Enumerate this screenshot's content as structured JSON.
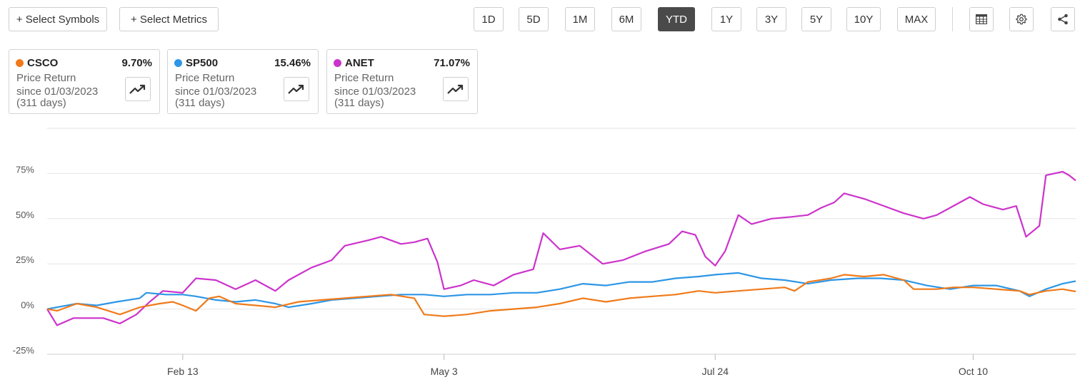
{
  "toolbar": {
    "select_symbols": "+ Select Symbols",
    "select_metrics": "+ Select Metrics",
    "ranges": [
      "1D",
      "5D",
      "1M",
      "6M",
      "YTD",
      "1Y",
      "3Y",
      "5Y",
      "10Y",
      "MAX"
    ],
    "active_range": "YTD"
  },
  "cards": [
    {
      "symbol": "CSCO",
      "value": "9.70%",
      "color": "#f07a1a",
      "metric": "Price Return",
      "since": "since 01/03/2023",
      "days": "(311 days)"
    },
    {
      "symbol": "SP500",
      "value": "15.46%",
      "color": "#2d96e6",
      "metric": "Price Return",
      "since": "since 01/03/2023",
      "days": "(311 days)"
    },
    {
      "symbol": "ANET",
      "value": "71.07%",
      "color": "#cc33cc",
      "metric": "Price Return",
      "since": "since 01/03/2023",
      "days": "(311 days)"
    }
  ],
  "chart_data": {
    "type": "line",
    "yticks": [
      -25,
      0,
      25,
      50,
      75
    ],
    "ytick_labels": [
      "-25%",
      "0%",
      "25%",
      "50%",
      "75%"
    ],
    "ylim": [
      -25,
      100
    ],
    "xlim": [
      "2023-01-03",
      "2023-11-10"
    ],
    "xticks": [
      {
        "date": "2023-02-13",
        "label": "Feb 13"
      },
      {
        "date": "2023-05-03",
        "label": "May 3"
      },
      {
        "date": "2023-07-24",
        "label": "Jul 24"
      },
      {
        "date": "2023-10-10",
        "label": "Oct 10"
      }
    ],
    "series": [
      {
        "name": "ANET",
        "color": "#cc33cc",
        "points": [
          [
            "2023-01-03",
            0
          ],
          [
            "2023-01-06",
            -9
          ],
          [
            "2023-01-11",
            -5
          ],
          [
            "2023-01-20",
            -5
          ],
          [
            "2023-01-25",
            -8
          ],
          [
            "2023-01-30",
            -3
          ],
          [
            "2023-02-03",
            4
          ],
          [
            "2023-02-07",
            10
          ],
          [
            "2023-02-13",
            9
          ],
          [
            "2023-02-17",
            17
          ],
          [
            "2023-02-23",
            16
          ],
          [
            "2023-03-01",
            11
          ],
          [
            "2023-03-07",
            16
          ],
          [
            "2023-03-13",
            10
          ],
          [
            "2023-03-17",
            16
          ],
          [
            "2023-03-24",
            23
          ],
          [
            "2023-03-30",
            27
          ],
          [
            "2023-04-03",
            35
          ],
          [
            "2023-04-10",
            38
          ],
          [
            "2023-04-14",
            40
          ],
          [
            "2023-04-20",
            36
          ],
          [
            "2023-04-24",
            37
          ],
          [
            "2023-04-28",
            39
          ],
          [
            "2023-05-01",
            26
          ],
          [
            "2023-05-03",
            11
          ],
          [
            "2023-05-08",
            13
          ],
          [
            "2023-05-12",
            16
          ],
          [
            "2023-05-18",
            13
          ],
          [
            "2023-05-24",
            19
          ],
          [
            "2023-05-30",
            22
          ],
          [
            "2023-06-02",
            42
          ],
          [
            "2023-06-07",
            33
          ],
          [
            "2023-06-13",
            35
          ],
          [
            "2023-06-20",
            25
          ],
          [
            "2023-06-26",
            27
          ],
          [
            "2023-07-03",
            32
          ],
          [
            "2023-07-10",
            36
          ],
          [
            "2023-07-14",
            43
          ],
          [
            "2023-07-18",
            41
          ],
          [
            "2023-07-21",
            29
          ],
          [
            "2023-07-24",
            24
          ],
          [
            "2023-07-27",
            32
          ],
          [
            "2023-07-31",
            52
          ],
          [
            "2023-08-04",
            47
          ],
          [
            "2023-08-10",
            50
          ],
          [
            "2023-08-16",
            51
          ],
          [
            "2023-08-21",
            52
          ],
          [
            "2023-08-25",
            56
          ],
          [
            "2023-08-29",
            59
          ],
          [
            "2023-09-01",
            64
          ],
          [
            "2023-09-07",
            61
          ],
          [
            "2023-09-13",
            57
          ],
          [
            "2023-09-19",
            53
          ],
          [
            "2023-09-25",
            50
          ],
          [
            "2023-09-29",
            52
          ],
          [
            "2023-10-04",
            57
          ],
          [
            "2023-10-09",
            62
          ],
          [
            "2023-10-13",
            58
          ],
          [
            "2023-10-19",
            55
          ],
          [
            "2023-10-23",
            57
          ],
          [
            "2023-10-26",
            40
          ],
          [
            "2023-10-30",
            46
          ],
          [
            "2023-11-01",
            74
          ],
          [
            "2023-11-06",
            76
          ],
          [
            "2023-11-08",
            74
          ],
          [
            "2023-11-10",
            71.07
          ]
        ]
      },
      {
        "name": "SP500",
        "color": "#2d96e6",
        "points": [
          [
            "2023-01-03",
            0
          ],
          [
            "2023-01-06",
            1
          ],
          [
            "2023-01-12",
            3
          ],
          [
            "2023-01-18",
            2
          ],
          [
            "2023-01-24",
            4
          ],
          [
            "2023-01-31",
            6
          ],
          [
            "2023-02-02",
            9
          ],
          [
            "2023-02-08",
            8
          ],
          [
            "2023-02-13",
            8
          ],
          [
            "2023-02-17",
            7
          ],
          [
            "2023-02-23",
            5
          ],
          [
            "2023-03-01",
            4
          ],
          [
            "2023-03-07",
            5
          ],
          [
            "2023-03-13",
            3
          ],
          [
            "2023-03-17",
            1
          ],
          [
            "2023-03-24",
            3
          ],
          [
            "2023-03-30",
            5
          ],
          [
            "2023-04-06",
            6
          ],
          [
            "2023-04-13",
            7
          ],
          [
            "2023-04-20",
            8
          ],
          [
            "2023-04-27",
            8
          ],
          [
            "2023-05-03",
            7
          ],
          [
            "2023-05-10",
            8
          ],
          [
            "2023-05-17",
            8
          ],
          [
            "2023-05-24",
            9
          ],
          [
            "2023-05-31",
            9
          ],
          [
            "2023-06-07",
            11
          ],
          [
            "2023-06-14",
            14
          ],
          [
            "2023-06-21",
            13
          ],
          [
            "2023-06-28",
            15
          ],
          [
            "2023-07-05",
            15
          ],
          [
            "2023-07-12",
            17
          ],
          [
            "2023-07-19",
            18
          ],
          [
            "2023-07-24",
            19
          ],
          [
            "2023-07-31",
            20
          ],
          [
            "2023-08-07",
            17
          ],
          [
            "2023-08-14",
            16
          ],
          [
            "2023-08-21",
            14
          ],
          [
            "2023-08-28",
            16
          ],
          [
            "2023-09-05",
            17
          ],
          [
            "2023-09-12",
            17
          ],
          [
            "2023-09-19",
            16
          ],
          [
            "2023-09-26",
            13
          ],
          [
            "2023-10-03",
            11
          ],
          [
            "2023-10-10",
            13
          ],
          [
            "2023-10-17",
            13
          ],
          [
            "2023-10-24",
            10
          ],
          [
            "2023-10-27",
            7
          ],
          [
            "2023-11-01",
            11
          ],
          [
            "2023-11-06",
            14
          ],
          [
            "2023-11-10",
            15.46
          ]
        ]
      },
      {
        "name": "CSCO",
        "color": "#f07a1a",
        "points": [
          [
            "2023-01-03",
            0
          ],
          [
            "2023-01-06",
            -1
          ],
          [
            "2023-01-12",
            3
          ],
          [
            "2023-01-18",
            1
          ],
          [
            "2023-01-25",
            -3
          ],
          [
            "2023-01-31",
            1
          ],
          [
            "2023-02-06",
            3
          ],
          [
            "2023-02-10",
            4
          ],
          [
            "2023-02-13",
            2
          ],
          [
            "2023-02-17",
            -1
          ],
          [
            "2023-02-21",
            6
          ],
          [
            "2023-02-24",
            7
          ],
          [
            "2023-03-01",
            3
          ],
          [
            "2023-03-07",
            2
          ],
          [
            "2023-03-13",
            1
          ],
          [
            "2023-03-20",
            4
          ],
          [
            "2023-03-27",
            5
          ],
          [
            "2023-04-03",
            6
          ],
          [
            "2023-04-10",
            7
          ],
          [
            "2023-04-17",
            8
          ],
          [
            "2023-04-24",
            6
          ],
          [
            "2023-04-27",
            -3
          ],
          [
            "2023-05-03",
            -4
          ],
          [
            "2023-05-10",
            -3
          ],
          [
            "2023-05-17",
            -1
          ],
          [
            "2023-05-24",
            0
          ],
          [
            "2023-05-31",
            1
          ],
          [
            "2023-06-07",
            3
          ],
          [
            "2023-06-14",
            6
          ],
          [
            "2023-06-21",
            4
          ],
          [
            "2023-06-28",
            6
          ],
          [
            "2023-07-05",
            7
          ],
          [
            "2023-07-12",
            8
          ],
          [
            "2023-07-19",
            10
          ],
          [
            "2023-07-24",
            9
          ],
          [
            "2023-07-31",
            10
          ],
          [
            "2023-08-07",
            11
          ],
          [
            "2023-08-14",
            12
          ],
          [
            "2023-08-17",
            10
          ],
          [
            "2023-08-21",
            15
          ],
          [
            "2023-08-28",
            17
          ],
          [
            "2023-09-01",
            19
          ],
          [
            "2023-09-07",
            18
          ],
          [
            "2023-09-13",
            19
          ],
          [
            "2023-09-19",
            16
          ],
          [
            "2023-09-22",
            11
          ],
          [
            "2023-09-29",
            11
          ],
          [
            "2023-10-04",
            12
          ],
          [
            "2023-10-10",
            12
          ],
          [
            "2023-10-17",
            11
          ],
          [
            "2023-10-24",
            10
          ],
          [
            "2023-10-27",
            8
          ],
          [
            "2023-11-01",
            10
          ],
          [
            "2023-11-06",
            11
          ],
          [
            "2023-11-10",
            9.7
          ]
        ]
      }
    ]
  }
}
